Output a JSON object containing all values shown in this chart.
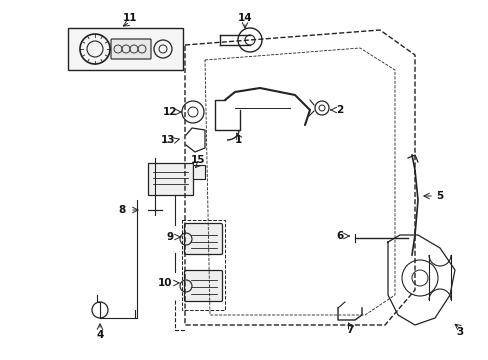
{
  "bg_color": "#ffffff",
  "line_color": "#222222",
  "text_color": "#111111",
  "figsize": [
    4.89,
    3.6
  ],
  "dpi": 100,
  "lw_main": 1.0,
  "lw_thin": 0.7,
  "font_size": 7.5
}
